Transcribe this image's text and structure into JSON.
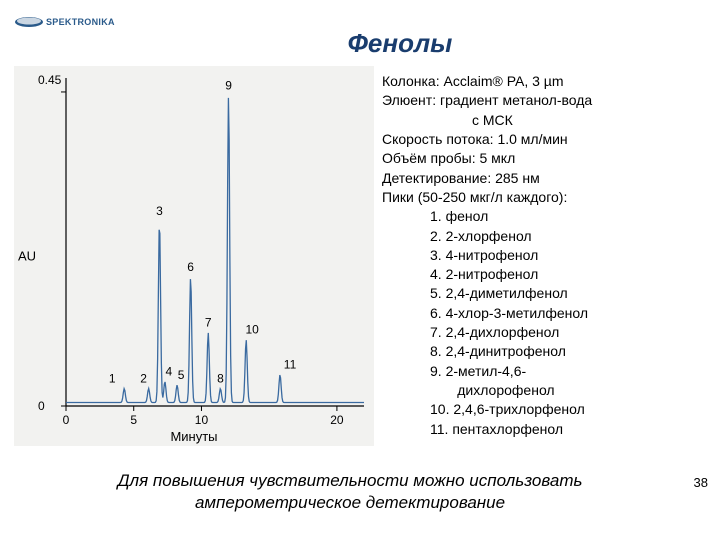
{
  "logo": {
    "brand": "SPEKTRONIKA",
    "shape_color": "#2a5a8a"
  },
  "title": "Фенолы",
  "page_number": "38",
  "chart": {
    "type": "chromatogram",
    "xlabel": "Минуты",
    "ylabel": "AU",
    "xlim": [
      0,
      22
    ],
    "ylim": [
      0,
      0.47
    ],
    "xticks": [
      0,
      5,
      10,
      20
    ],
    "yticks": [
      0,
      0.45
    ],
    "ytick_labels": [
      "0",
      "0.45"
    ],
    "background_color": "#f2f2f0",
    "line_color": "#3a6aa0",
    "axis_color": "#000000",
    "label_fontsize": 13,
    "peaks": [
      {
        "label": "1",
        "x": 4.3,
        "height": 0.02,
        "label_offset": -12
      },
      {
        "label": "2",
        "x": 6.1,
        "height": 0.02,
        "label_offset": -5
      },
      {
        "label": "3",
        "x": 6.9,
        "height": 0.26,
        "label_offset": 0
      },
      {
        "label": "4",
        "x": 7.3,
        "height": 0.03,
        "label_offset": 4
      },
      {
        "label": "5",
        "x": 8.2,
        "height": 0.025,
        "label_offset": 4
      },
      {
        "label": "6",
        "x": 9.2,
        "height": 0.18,
        "label_offset": 0
      },
      {
        "label": "7",
        "x": 10.5,
        "height": 0.1,
        "label_offset": 0
      },
      {
        "label": "8",
        "x": 11.4,
        "height": 0.02,
        "label_offset": 0
      },
      {
        "label": "9",
        "x": 12.0,
        "height": 0.44,
        "label_offset": 0
      },
      {
        "label": "10",
        "x": 13.3,
        "height": 0.09,
        "label_offset": 6
      },
      {
        "label": "11",
        "x": 15.8,
        "height": 0.04,
        "label_offset": 10
      }
    ]
  },
  "conditions": {
    "column": "Колонка: Acclaim® PA, 3 µm",
    "eluent": "Элюент: градиент метанол-вода",
    "eluent2": "с МСК",
    "flow": "Скорость потока: 1.0 мл/мин",
    "volume": "Объём пробы: 5 мкл",
    "detect": "Детектирование: 285 нм",
    "peaksHdr": "Пики (50-250 мкг/л каждого):",
    "peaks": [
      "1. фенол",
      "2. 2-хлорфенол",
      "3. 4-нитрофенол",
      "4. 2-нитрофенол",
      "5. 2,4-диметилфенол",
      "6. 4-хлор-3-метилфенол",
      "7. 2,4-дихлорфенол",
      "8. 2,4-динитрофенол",
      "9. 2-метил-4,6-",
      "       дихлорофенол",
      "10. 2,4,6-трихлорфенол",
      "11. пентахлорфенол"
    ]
  },
  "footnote": "Для повышения чувствительности можно использовать амперометрическое детектирование"
}
